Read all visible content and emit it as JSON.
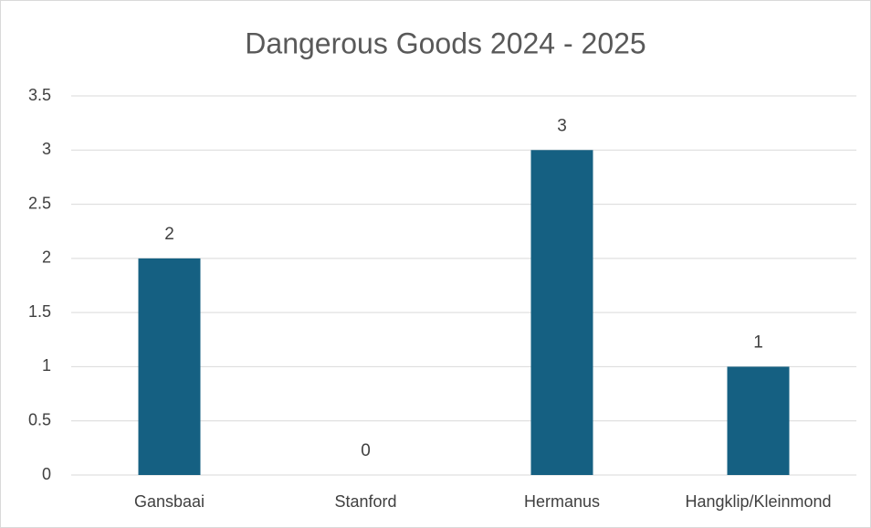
{
  "chart_data": {
    "type": "bar",
    "title": "Dangerous Goods 2024 - 2025",
    "categories": [
      "Gansbaai",
      "Stanford",
      "Hermanus",
      "Hangklip/Kleinmond"
    ],
    "values": [
      2,
      0,
      3,
      1
    ],
    "color": "#156082",
    "ylim": [
      0,
      3.5
    ],
    "yticks": [
      0,
      0.5,
      1,
      1.5,
      2,
      2.5,
      3,
      3.5
    ],
    "grid": true
  }
}
